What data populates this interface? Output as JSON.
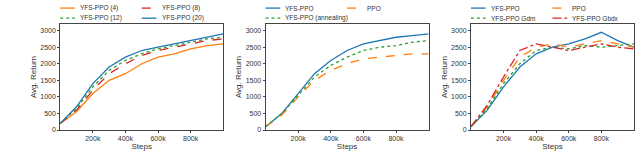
{
  "chart_data": [
    {
      "type": "line",
      "x_label": "Steps",
      "y_label": "Avg. Return",
      "grid": false,
      "x": [
        0,
        100000,
        200000,
        300000,
        400000,
        500000,
        600000,
        700000,
        800000,
        900000,
        1000000
      ],
      "xlim": [
        0,
        1000000
      ],
      "xticks": [
        {
          "value": 200000,
          "label": "200k"
        },
        {
          "value": 400000,
          "label": "400k"
        },
        {
          "value": 600000,
          "label": "600k"
        },
        {
          "value": 800000,
          "label": "800k"
        }
      ],
      "ylim": [
        0,
        3200
      ],
      "yticks": [
        0,
        500,
        1000,
        1500,
        2000,
        2500,
        3000
      ],
      "series": [
        {
          "name": "YFS-PPO (4)",
          "color": "#ff7f0e",
          "line_style": "solid",
          "values": [
            200,
            550,
            1100,
            1500,
            1700,
            2000,
            2200,
            2300,
            2450,
            2550,
            2600
          ]
        },
        {
          "name": "YFS-PPO (8)",
          "color": "#d62728",
          "line_style": "dash",
          "values": [
            200,
            600,
            1200,
            1700,
            2000,
            2250,
            2400,
            2500,
            2600,
            2700,
            2750
          ]
        },
        {
          "name": "YFS-PPO (12)",
          "color": "#2ca02c",
          "line_style": "dot",
          "values": [
            200,
            650,
            1300,
            1800,
            2100,
            2300,
            2450,
            2550,
            2650,
            2750,
            2800
          ]
        },
        {
          "name": "YFS-PPO (20)",
          "color": "#1f77b4",
          "line_style": "solid",
          "values": [
            200,
            700,
            1400,
            1900,
            2200,
            2400,
            2500,
            2600,
            2700,
            2800,
            2900
          ]
        }
      ]
    },
    {
      "type": "line",
      "x_label": "Steps",
      "y_label": "Avg. Return",
      "grid": false,
      "x": [
        0,
        100000,
        200000,
        300000,
        400000,
        500000,
        600000,
        700000,
        800000,
        900000,
        1000000
      ],
      "xlim": [
        0,
        1000000
      ],
      "xticks": [
        {
          "value": 200000,
          "label": "200k"
        },
        {
          "value": 400000,
          "label": "400k"
        },
        {
          "value": 600000,
          "label": "600k"
        },
        {
          "value": 800000,
          "label": "800k"
        }
      ],
      "ylim": [
        0,
        3200
      ],
      "yticks": [
        0,
        500,
        1000,
        1500,
        2000,
        2500,
        3000
      ],
      "series": [
        {
          "name": "YFS-PPO",
          "color": "#1f77b4",
          "line_style": "solid",
          "values": [
            100,
            500,
            1100,
            1700,
            2100,
            2400,
            2600,
            2700,
            2800,
            2850,
            2900
          ]
        },
        {
          "name": "PPO",
          "color": "#ff7f0e",
          "line_style": "dash",
          "values": [
            100,
            450,
            1000,
            1500,
            1800,
            2000,
            2150,
            2200,
            2250,
            2300,
            2300
          ]
        },
        {
          "name": "YFS-PPO (annealing)",
          "color": "#2ca02c",
          "line_style": "dot",
          "values": [
            100,
            500,
            1050,
            1600,
            1950,
            2200,
            2400,
            2500,
            2550,
            2650,
            2700
          ]
        }
      ]
    },
    {
      "type": "line",
      "x_label": "Steps",
      "y_label": "Avg. Return",
      "grid": false,
      "x": [
        0,
        100000,
        200000,
        300000,
        400000,
        500000,
        600000,
        700000,
        800000,
        900000,
        1000000
      ],
      "xlim": [
        0,
        1000000
      ],
      "xticks": [
        {
          "value": 200000,
          "label": "200k"
        },
        {
          "value": 400000,
          "label": "400k"
        },
        {
          "value": 600000,
          "label": "600k"
        },
        {
          "value": 800000,
          "label": "800k"
        }
      ],
      "ylim": [
        0,
        3200
      ],
      "yticks": [
        0,
        500,
        1000,
        1500,
        2000,
        2500,
        3000
      ],
      "series": [
        {
          "name": "YFS-PPO",
          "color": "#1f77b4",
          "line_style": "solid",
          "values": [
            100,
            600,
            1300,
            1900,
            2300,
            2500,
            2600,
            2750,
            2950,
            2700,
            2500
          ]
        },
        {
          "name": "PPO",
          "color": "#ff7f0e",
          "line_style": "dash",
          "values": [
            100,
            700,
            1500,
            2200,
            2500,
            2600,
            2500,
            2600,
            2700,
            2600,
            2500
          ]
        },
        {
          "name": "YFS-PPO Gdm",
          "color": "#2ca02c",
          "line_style": "dot",
          "values": [
            100,
            650,
            1400,
            2000,
            2400,
            2500,
            2450,
            2550,
            2500,
            2550,
            2600
          ]
        },
        {
          "name": "YFS-PPO Gbdx",
          "color": "#d62728",
          "line_style": "dashdot",
          "values": [
            100,
            750,
            1600,
            2400,
            2600,
            2500,
            2400,
            2500,
            2600,
            2500,
            2450
          ]
        }
      ]
    }
  ]
}
